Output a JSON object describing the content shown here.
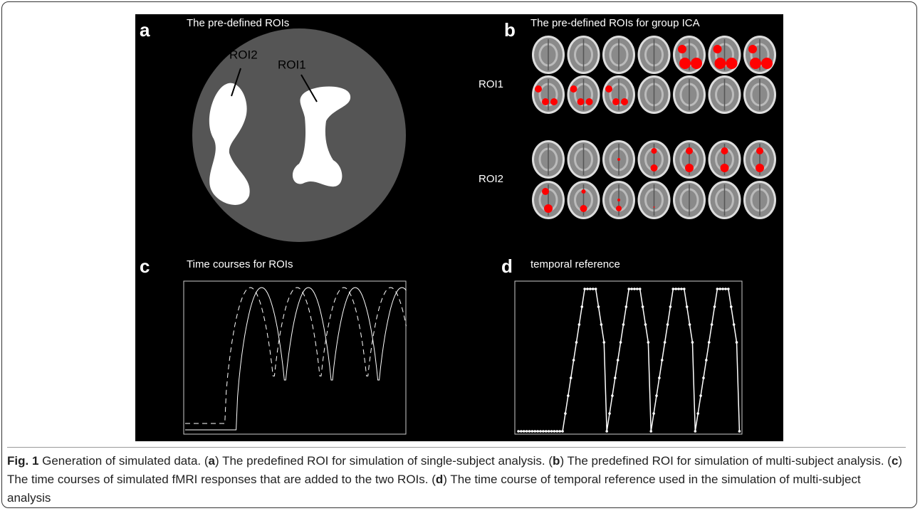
{
  "panels": [
    {
      "label": "a",
      "title": "The pre-defined ROIs",
      "annotations": [
        "ROI2",
        "ROI1"
      ]
    },
    {
      "label": "b",
      "title": "The pre-defined ROIs for group ICA",
      "row_labels": [
        "ROI1",
        "ROI2"
      ]
    },
    {
      "label": "c",
      "title": "Time courses for ROIs"
    },
    {
      "label": "d",
      "title": "temporal reference"
    }
  ],
  "caption": [
    {
      "text": "Fig. 1",
      "bold": true
    },
    {
      "text": " Generation of simulated data. (",
      "bold": false
    },
    {
      "text": "a",
      "bold": true
    },
    {
      "text": ") The predefined ROI for simulation of single-subject analysis. (",
      "bold": false
    },
    {
      "text": "b",
      "bold": true
    },
    {
      "text": ") The predefined ROI for simulation of multi-subject analysis. (",
      "bold": false
    },
    {
      "text": "c",
      "bold": true
    },
    {
      "text": ") The time courses of simulated fMRI responses that are added to the two ROIs. (",
      "bold": false
    },
    {
      "text": "d",
      "bold": true
    },
    {
      "text": ") The time course of temporal reference used in the simulation of multi-subject analysis",
      "bold": false
    }
  ]
}
